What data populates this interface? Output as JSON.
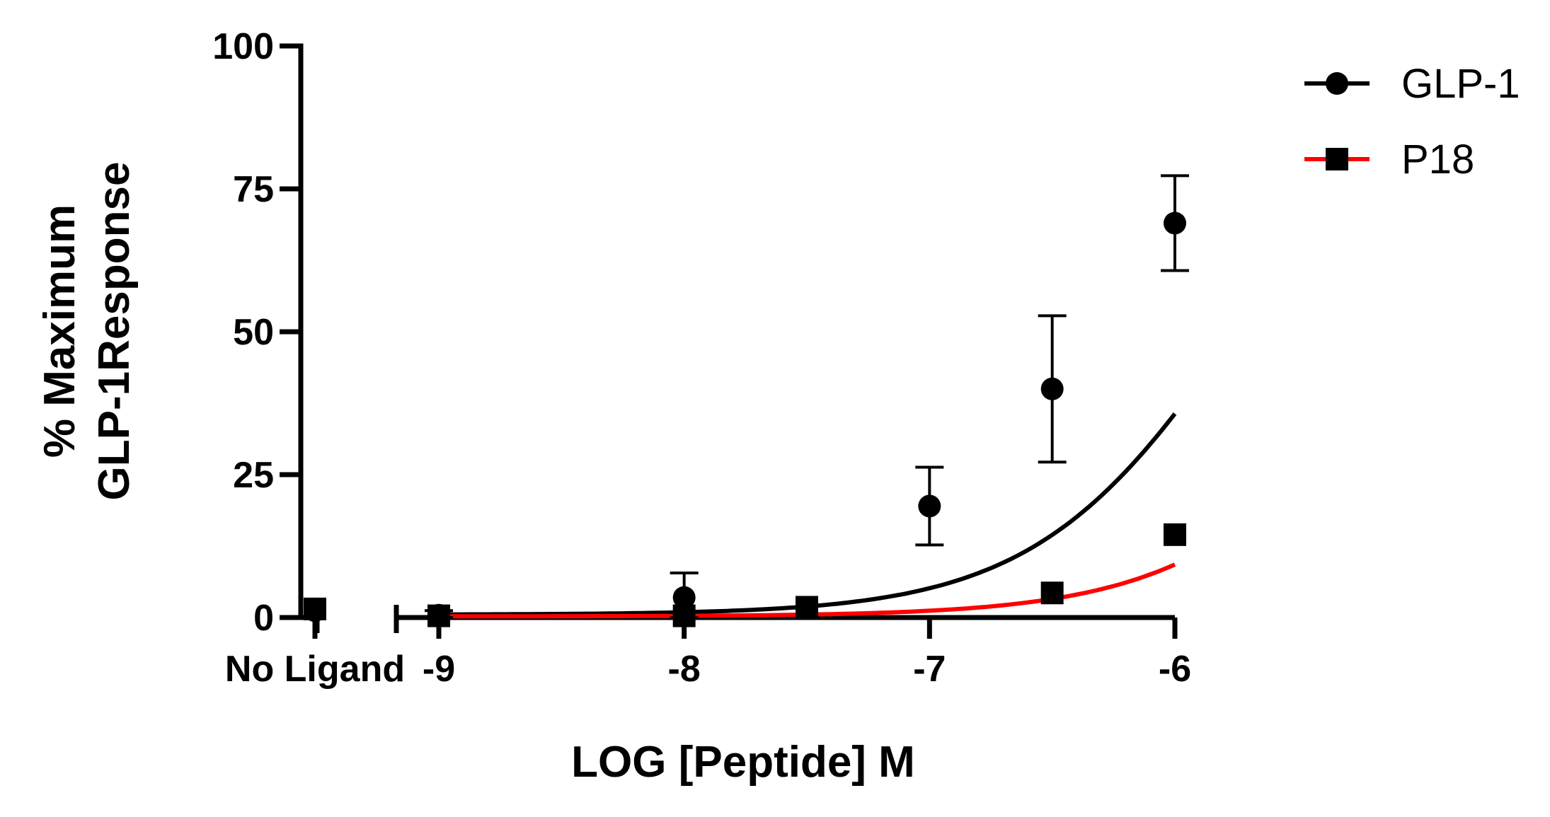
{
  "chart_data": {
    "type": "line",
    "title": "",
    "xlabel": "LOG [Peptide] M",
    "ylabel": [
      "% Maximum",
      "GLP-1Response"
    ],
    "ylim": [
      0,
      100
    ],
    "y_ticks": [
      0,
      25,
      50,
      75,
      100
    ],
    "xlim": [
      -9.5,
      -6
    ],
    "x_ticks": [
      -9,
      -8,
      -7,
      -6
    ],
    "x_tick_labels": [
      "-9",
      "-8",
      "-7",
      "-6"
    ],
    "baseline_label": "No Ligand",
    "grid": false,
    "legend_position": "top-right",
    "series": [
      {
        "name": "GLP-1",
        "color": "#000000",
        "marker": "circle",
        "baseline": {
          "y": 1.2,
          "err": 0
        },
        "points": [
          {
            "x": -9,
            "y": 0.4,
            "err": 0.8
          },
          {
            "x": -8,
            "y": 3.5,
            "err": 4.3
          },
          {
            "x": -7,
            "y": 19.5,
            "err": 6.8
          },
          {
            "x": -6.5,
            "y": 40.0,
            "err": 12.8
          },
          {
            "x": -6,
            "y": 69.0,
            "err": 8.3
          }
        ],
        "fit": {
          "bottom": 0.5,
          "top": 100,
          "logEC50": -5.75,
          "hill": 1.05
        }
      },
      {
        "name": "P18",
        "color": "#ff0000",
        "marker": "square",
        "baseline": {
          "y": 1.5,
          "err": 0
        },
        "points": [
          {
            "x": -9,
            "y": 0.3,
            "err": 0
          },
          {
            "x": -8,
            "y": 0.3,
            "err": 0
          },
          {
            "x": -7.5,
            "y": 1.8,
            "err": 0
          },
          {
            "x": -6.5,
            "y": 4.3,
            "err": 0
          },
          {
            "x": -6,
            "y": 14.5,
            "err": 0
          }
        ],
        "fit": {
          "bottom": 0.2,
          "top": 100,
          "logEC50": -5.0,
          "hill": 1.0
        }
      }
    ]
  }
}
